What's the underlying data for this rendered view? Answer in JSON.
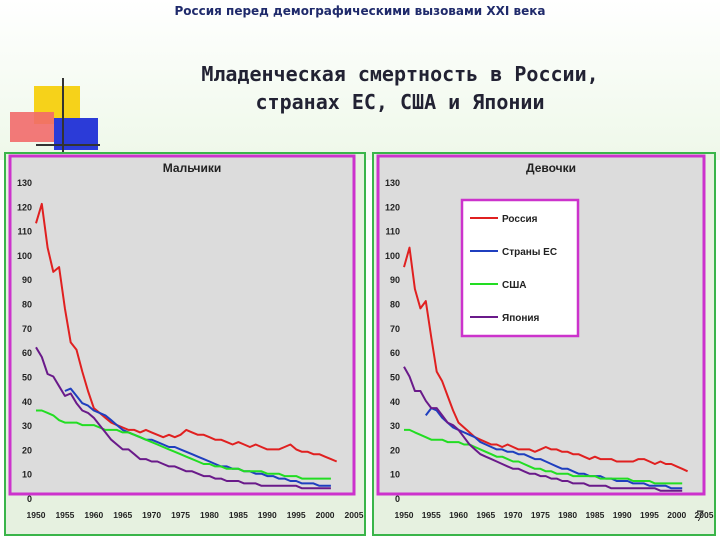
{
  "header": {
    "subtitle": "Россия перед демографическими вызовами XXI века"
  },
  "title": {
    "line1": "Младенческая смертность в России,",
    "line2": "странах ЕС, США и Японии"
  },
  "page_number": "7",
  "colors": {
    "russia": "#e02020",
    "eu": "#1f3fbf",
    "usa": "#22dd22",
    "japan": "#6a1a8a",
    "plot_bg": "#dcdcdc",
    "frame": "#cc33cc",
    "panel_border": "#3ab54a"
  },
  "chart_data": [
    {
      "type": "line",
      "title": "Мальчики",
      "xlabel": "",
      "ylabel": "",
      "xlim": [
        1950,
        2005
      ],
      "ylim": [
        0,
        130
      ],
      "xticks": [
        1950,
        1955,
        1960,
        1965,
        1970,
        1975,
        1980,
        1985,
        1990,
        1995,
        2000,
        2005
      ],
      "yticks": [
        0,
        10,
        20,
        30,
        40,
        50,
        60,
        70,
        80,
        90,
        100,
        110,
        120,
        130
      ],
      "grid": false,
      "series": [
        {
          "name": "Россия",
          "color_key": "russia",
          "x": [
            1950,
            1951,
            1952,
            1953,
            1954,
            1955,
            1956,
            1957,
            1958,
            1959,
            1960,
            1961,
            1962,
            1963,
            1964,
            1965,
            1966,
            1967,
            1968,
            1969,
            1970,
            1971,
            1972,
            1973,
            1974,
            1975,
            1976,
            1977,
            1978,
            1979,
            1980,
            1981,
            1982,
            1983,
            1984,
            1985,
            1986,
            1987,
            1988,
            1989,
            1990,
            1991,
            1992,
            1993,
            1994,
            1995,
            1996,
            1997,
            1998,
            1999,
            2000,
            2001,
            2002
          ],
          "y": [
            113,
            121,
            103,
            93,
            95,
            78,
            64,
            61,
            52,
            44,
            37,
            35,
            33,
            31,
            30,
            29,
            28,
            28,
            27,
            28,
            27,
            26,
            25,
            26,
            25,
            26,
            28,
            27,
            26,
            26,
            25,
            24,
            24,
            23,
            22,
            23,
            22,
            21,
            22,
            21,
            20,
            20,
            20,
            21,
            22,
            20,
            19,
            19,
            18,
            18,
            17,
            16,
            15
          ]
        },
        {
          "name": "Страны ЕС",
          "color_key": "eu",
          "x": [
            1955,
            1956,
            1957,
            1958,
            1959,
            1960,
            1961,
            1962,
            1963,
            1964,
            1965,
            1966,
            1967,
            1968,
            1969,
            1970,
            1971,
            1972,
            1973,
            1974,
            1975,
            1976,
            1977,
            1978,
            1979,
            1980,
            1981,
            1982,
            1983,
            1984,
            1985,
            1986,
            1987,
            1988,
            1989,
            1990,
            1991,
            1992,
            1993,
            1994,
            1995,
            1996,
            1997,
            1998,
            1999,
            2000,
            2001
          ],
          "y": [
            44,
            45,
            42,
            39,
            38,
            36,
            35,
            34,
            32,
            30,
            28,
            27,
            26,
            25,
            24,
            24,
            23,
            22,
            21,
            21,
            20,
            19,
            18,
            17,
            16,
            15,
            14,
            13,
            13,
            12,
            12,
            11,
            11,
            10,
            10,
            9,
            9,
            8,
            8,
            7,
            7,
            6,
            6,
            6,
            5,
            5,
            5
          ]
        },
        {
          "name": "США",
          "color_key": "usa",
          "x": [
            1950,
            1951,
            1952,
            1953,
            1954,
            1955,
            1956,
            1957,
            1958,
            1959,
            1960,
            1961,
            1962,
            1963,
            1964,
            1965,
            1966,
            1967,
            1968,
            1969,
            1970,
            1971,
            1972,
            1973,
            1974,
            1975,
            1976,
            1977,
            1978,
            1979,
            1980,
            1981,
            1982,
            1983,
            1984,
            1985,
            1986,
            1987,
            1988,
            1989,
            1990,
            1991,
            1992,
            1993,
            1994,
            1995,
            1996,
            1997,
            1998,
            1999,
            2000,
            2001
          ],
          "y": [
            36,
            36,
            35,
            34,
            32,
            31,
            31,
            31,
            30,
            30,
            30,
            29,
            28,
            28,
            28,
            27,
            27,
            26,
            25,
            24,
            23,
            22,
            21,
            20,
            19,
            18,
            17,
            16,
            15,
            14,
            14,
            13,
            13,
            12,
            12,
            12,
            11,
            11,
            11,
            11,
            10,
            10,
            10,
            9,
            9,
            9,
            8,
            8,
            8,
            8,
            8,
            8
          ]
        },
        {
          "name": "Япония",
          "color_key": "japan",
          "x": [
            1950,
            1951,
            1952,
            1953,
            1954,
            1955,
            1956,
            1957,
            1958,
            1959,
            1960,
            1961,
            1962,
            1963,
            1964,
            1965,
            1966,
            1967,
            1968,
            1969,
            1970,
            1971,
            1972,
            1973,
            1974,
            1975,
            1976,
            1977,
            1978,
            1979,
            1980,
            1981,
            1982,
            1983,
            1984,
            1985,
            1986,
            1987,
            1988,
            1989,
            1990,
            1991,
            1992,
            1993,
            1994,
            1995,
            1996,
            1997,
            1998,
            1999,
            2000,
            2001
          ],
          "y": [
            62,
            58,
            51,
            50,
            46,
            42,
            43,
            39,
            36,
            35,
            33,
            30,
            27,
            24,
            22,
            20,
            20,
            18,
            16,
            16,
            15,
            15,
            14,
            13,
            13,
            12,
            11,
            11,
            10,
            9,
            9,
            8,
            8,
            7,
            7,
            7,
            6,
            6,
            6,
            5,
            5,
            5,
            5,
            5,
            5,
            5,
            4,
            4,
            4,
            4,
            4,
            4
          ]
        }
      ]
    },
    {
      "type": "line",
      "title": "Девочки",
      "xlabel": "",
      "ylabel": "",
      "xlim": [
        1950,
        2005
      ],
      "ylim": [
        0,
        130
      ],
      "xticks": [
        1950,
        1955,
        1960,
        1965,
        1970,
        1975,
        1980,
        1985,
        1990,
        1995,
        2000,
        2005
      ],
      "yticks": [
        0,
        10,
        20,
        30,
        40,
        50,
        60,
        70,
        80,
        90,
        100,
        110,
        120,
        130
      ],
      "grid": false,
      "legend": "top-right",
      "series": [
        {
          "name": "Россия",
          "color_key": "russia",
          "x": [
            1950,
            1951,
            1952,
            1953,
            1954,
            1955,
            1956,
            1957,
            1958,
            1959,
            1960,
            1961,
            1962,
            1963,
            1964,
            1965,
            1966,
            1967,
            1968,
            1969,
            1970,
            1971,
            1972,
            1973,
            1974,
            1975,
            1976,
            1977,
            1978,
            1979,
            1980,
            1981,
            1982,
            1983,
            1984,
            1985,
            1986,
            1987,
            1988,
            1989,
            1990,
            1991,
            1992,
            1993,
            1994,
            1995,
            1996,
            1997,
            1998,
            1999,
            2000,
            2001,
            2002
          ],
          "y": [
            95,
            103,
            86,
            78,
            81,
            66,
            52,
            48,
            42,
            36,
            31,
            29,
            27,
            25,
            24,
            23,
            22,
            22,
            21,
            22,
            21,
            20,
            20,
            20,
            19,
            20,
            21,
            20,
            20,
            19,
            19,
            18,
            18,
            17,
            16,
            17,
            16,
            16,
            16,
            15,
            15,
            15,
            15,
            16,
            16,
            15,
            14,
            15,
            14,
            14,
            13,
            12,
            11
          ]
        },
        {
          "name": "Страны ЕС",
          "color_key": "eu",
          "x": [
            1954,
            1955,
            1956,
            1957,
            1958,
            1959,
            1960,
            1961,
            1962,
            1963,
            1964,
            1965,
            1966,
            1967,
            1968,
            1969,
            1970,
            1971,
            1972,
            1973,
            1974,
            1975,
            1976,
            1977,
            1978,
            1979,
            1980,
            1981,
            1982,
            1983,
            1984,
            1985,
            1986,
            1987,
            1988,
            1989,
            1990,
            1991,
            1992,
            1993,
            1994,
            1995,
            1996,
            1997,
            1998,
            1999,
            2000,
            2001
          ],
          "y": [
            34,
            37,
            36,
            33,
            31,
            29,
            28,
            27,
            26,
            25,
            23,
            22,
            21,
            20,
            20,
            19,
            19,
            18,
            18,
            17,
            16,
            16,
            15,
            14,
            13,
            12,
            12,
            11,
            10,
            10,
            9,
            9,
            9,
            8,
            8,
            7,
            7,
            7,
            6,
            6,
            6,
            5,
            5,
            5,
            5,
            4,
            4,
            4
          ]
        },
        {
          "name": "США",
          "color_key": "usa",
          "x": [
            1950,
            1951,
            1952,
            1953,
            1954,
            1955,
            1956,
            1957,
            1958,
            1959,
            1960,
            1961,
            1962,
            1963,
            1964,
            1965,
            1966,
            1967,
            1968,
            1969,
            1970,
            1971,
            1972,
            1973,
            1974,
            1975,
            1976,
            1977,
            1978,
            1979,
            1980,
            1981,
            1982,
            1983,
            1984,
            1985,
            1986,
            1987,
            1988,
            1989,
            1990,
            1991,
            1992,
            1993,
            1994,
            1995,
            1996,
            1997,
            1998,
            1999,
            2000,
            2001
          ],
          "y": [
            28,
            28,
            27,
            26,
            25,
            24,
            24,
            24,
            23,
            23,
            23,
            22,
            22,
            21,
            20,
            19,
            18,
            17,
            17,
            16,
            15,
            15,
            14,
            13,
            12,
            12,
            11,
            11,
            10,
            10,
            10,
            9,
            9,
            9,
            9,
            9,
            8,
            8,
            8,
            8,
            8,
            8,
            7,
            7,
            7,
            7,
            6,
            6,
            6,
            6,
            6,
            6
          ]
        },
        {
          "name": "Япония",
          "color_key": "japan",
          "x": [
            1950,
            1951,
            1952,
            1953,
            1954,
            1955,
            1956,
            1957,
            1958,
            1959,
            1960,
            1961,
            1962,
            1963,
            1964,
            1965,
            1966,
            1967,
            1968,
            1969,
            1970,
            1971,
            1972,
            1973,
            1974,
            1975,
            1976,
            1977,
            1978,
            1979,
            1980,
            1981,
            1982,
            1983,
            1984,
            1985,
            1986,
            1987,
            1988,
            1989,
            1990,
            1991,
            1992,
            1993,
            1994,
            1995,
            1996,
            1997,
            1998,
            1999,
            2000,
            2001
          ],
          "y": [
            54,
            50,
            44,
            44,
            40,
            37,
            37,
            34,
            31,
            30,
            28,
            25,
            22,
            20,
            18,
            17,
            16,
            15,
            14,
            13,
            12,
            12,
            11,
            10,
            10,
            9,
            9,
            8,
            8,
            7,
            7,
            6,
            6,
            6,
            5,
            5,
            5,
            5,
            4,
            4,
            4,
            4,
            4,
            4,
            4,
            4,
            4,
            3,
            3,
            3,
            3,
            3
          ]
        }
      ]
    }
  ]
}
